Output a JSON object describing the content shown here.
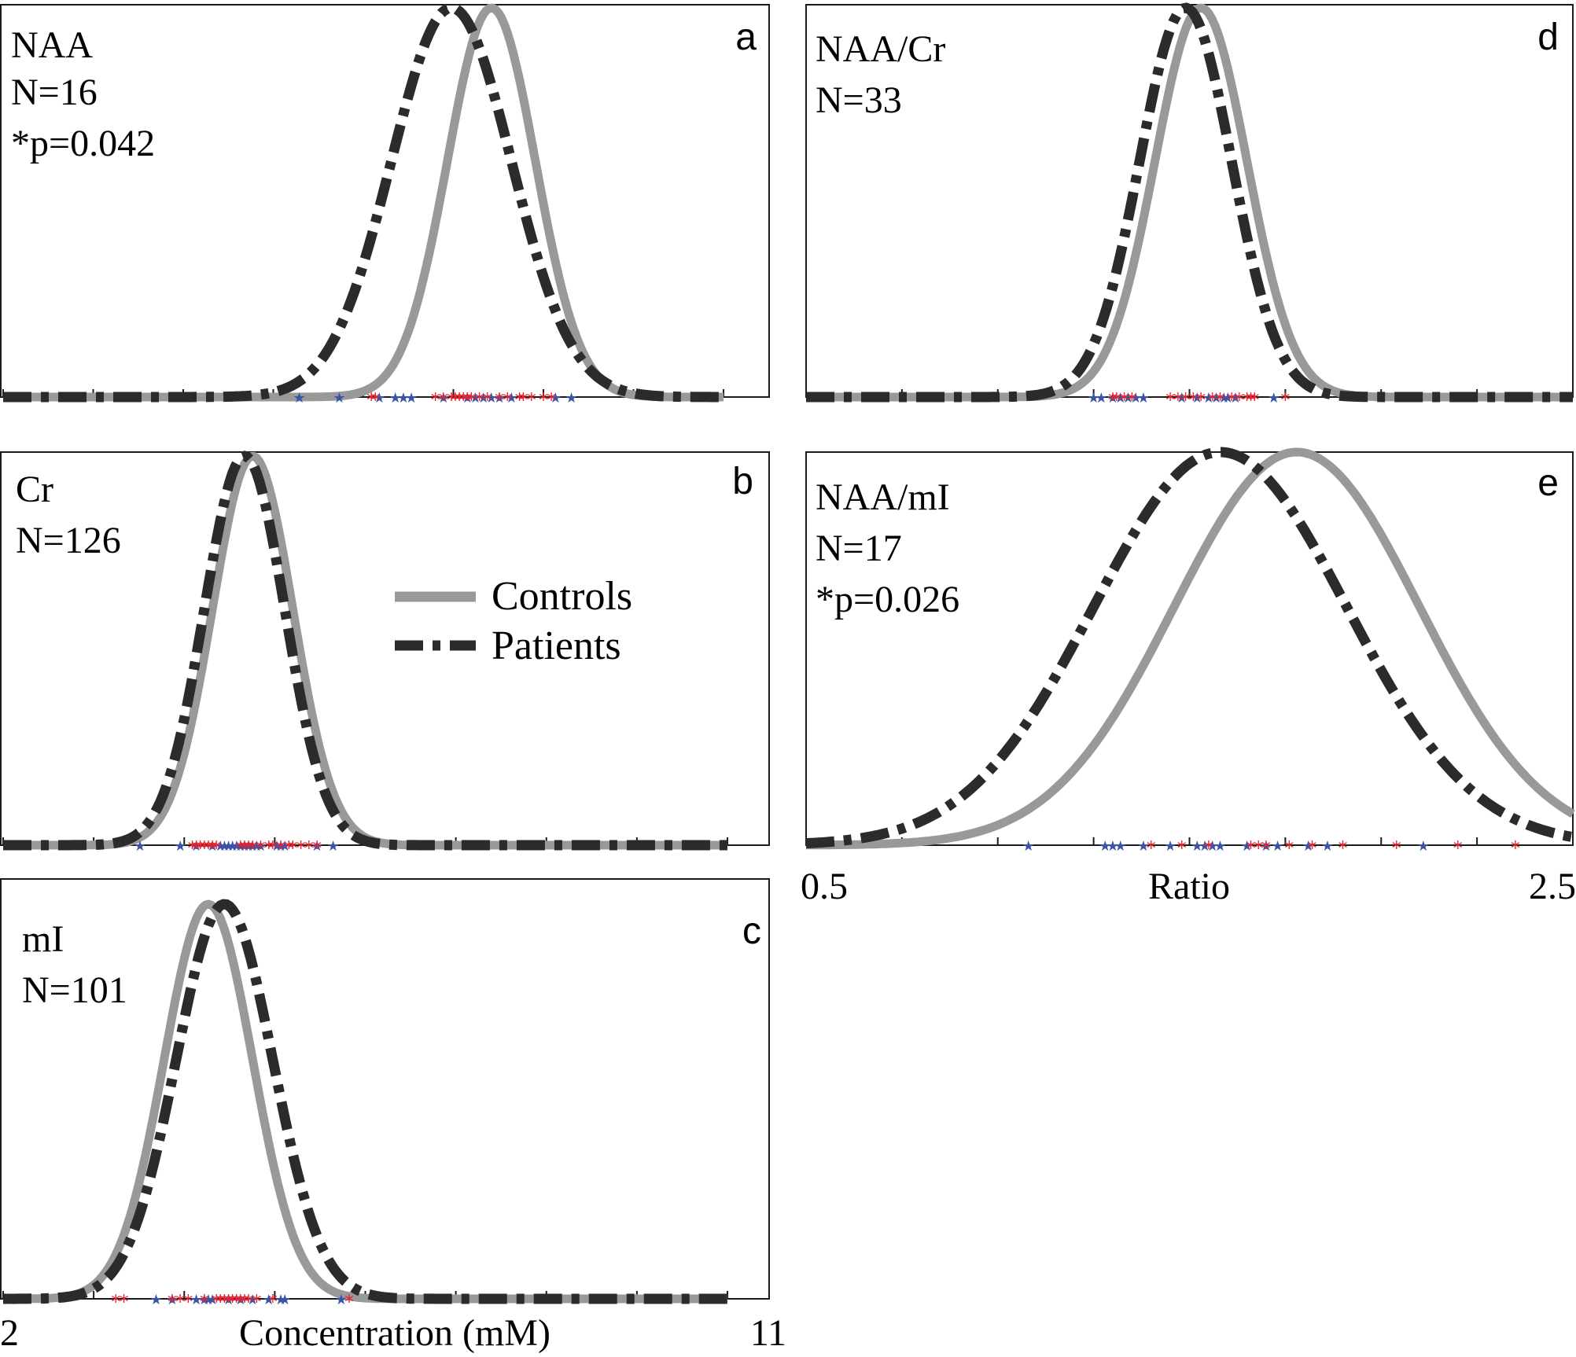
{
  "chart_data": [
    {
      "id": "a",
      "type": "line",
      "panel_letter": "a",
      "metabolite": "NAA",
      "n_label": "N=16",
      "p_label": "*p=0.042",
      "x_range": [
        2,
        11
      ],
      "y_range": [
        0,
        1.05
      ],
      "series": [
        {
          "name": "Controls",
          "mean": 8.1,
          "sd": 0.55
        },
        {
          "name": "Patients",
          "mean": 7.6,
          "sd": 0.75
        }
      ],
      "controls_points": [
        5.7,
        6.2,
        6.7,
        6.9,
        7.0,
        7.1,
        7.5,
        7.8,
        7.9,
        8.0,
        8.1,
        8.2,
        8.35,
        8.9,
        9.1
      ],
      "patients_points": [
        6.6,
        6.65,
        7.4,
        7.5,
        7.6,
        7.65,
        7.7,
        7.75,
        7.8,
        7.85,
        7.95,
        8.05,
        8.2,
        8.3,
        8.45,
        8.5,
        8.6,
        8.75,
        8.85
      ]
    },
    {
      "id": "b",
      "type": "line",
      "panel_letter": "b",
      "metabolite": "Cr",
      "n_label": "N=126",
      "p_label": "",
      "x_range": [
        2,
        11
      ],
      "y_range": [
        0,
        1.05
      ],
      "series": [
        {
          "name": "Controls",
          "mean": 5.1,
          "sd": 0.5
        },
        {
          "name": "Patients",
          "mean": 5.0,
          "sd": 0.5
        }
      ],
      "controls_points": [
        3.7,
        4.2,
        4.4,
        4.6,
        4.7,
        4.75,
        4.8,
        4.85,
        4.9,
        4.95,
        5.0,
        5.05,
        5.1,
        5.15,
        5.2,
        5.4,
        5.45,
        5.5,
        5.9,
        6.1
      ],
      "patients_points": [
        4.35,
        4.4,
        4.45,
        4.5,
        4.55,
        4.6,
        4.65,
        4.95,
        5.0,
        5.05,
        5.1,
        5.2,
        5.3,
        5.35,
        5.45,
        5.55,
        5.6,
        5.7,
        5.8,
        5.9
      ]
    },
    {
      "id": "c",
      "type": "line",
      "panel_letter": "c",
      "metabolite": "mI",
      "n_label": "N=101",
      "p_label": "",
      "x_range": [
        2,
        11
      ],
      "y_range": [
        0,
        1.05
      ],
      "series": [
        {
          "name": "Controls",
          "mean": 4.55,
          "sd": 0.55
        },
        {
          "name": "Patients",
          "mean": 4.75,
          "sd": 0.6
        }
      ],
      "controls_points": [
        3.9,
        4.1,
        4.4,
        4.5,
        4.55,
        4.6,
        4.8,
        4.95,
        5.1,
        5.3,
        5.45,
        5.5,
        6.2
      ],
      "patients_points": [
        3.4,
        3.5,
        4.1,
        4.2,
        4.3,
        4.5,
        4.65,
        4.7,
        4.75,
        4.8,
        4.85,
        4.9,
        4.95,
        5.0,
        5.05,
        5.15,
        5.35,
        6.3
      ]
    },
    {
      "id": "d",
      "type": "line",
      "panel_letter": "d",
      "metabolite": "NAA/Cr",
      "n_label": "N=33",
      "p_label": "",
      "x_range": [
        0.5,
        2.5
      ],
      "y_range": [
        0,
        1.05
      ],
      "series": [
        {
          "name": "Controls",
          "mean": 1.53,
          "sd": 0.12
        },
        {
          "name": "Patients",
          "mean": 1.49,
          "sd": 0.12
        }
      ],
      "controls_points": [
        1.25,
        1.27,
        1.3,
        1.32,
        1.34,
        1.36,
        1.38,
        1.48,
        1.52,
        1.55,
        1.57,
        1.59,
        1.6,
        1.62,
        1.72
      ],
      "patients_points": [
        1.3,
        1.31,
        1.33,
        1.35,
        1.45,
        1.47,
        1.49,
        1.51,
        1.53,
        1.56,
        1.58,
        1.61,
        1.63,
        1.65,
        1.66,
        1.67,
        1.75
      ]
    },
    {
      "id": "e",
      "type": "line",
      "panel_letter": "e",
      "metabolite": "NAA/mI",
      "n_label": "N=17",
      "p_label": "*p=0.026",
      "x_range": [
        0.5,
        2.5
      ],
      "y_range": [
        0,
        1.05
      ],
      "series": [
        {
          "name": "Controls",
          "mean": 1.78,
          "sd": 0.32
        },
        {
          "name": "Patients",
          "mean": 1.58,
          "sd": 0.33
        }
      ],
      "controls_points": [
        1.08,
        1.28,
        1.3,
        1.32,
        1.38,
        1.45,
        1.52,
        1.54,
        1.56,
        1.58,
        1.65,
        1.7,
        1.73,
        1.81,
        1.86,
        2.11
      ],
      "patients_points": [
        1.4,
        1.48,
        1.55,
        1.66,
        1.68,
        1.7,
        1.76,
        1.82,
        1.9,
        2.04,
        2.2,
        2.35
      ]
    }
  ],
  "legend": {
    "controls_label": "Controls",
    "patients_label": "Patients"
  },
  "axes": {
    "left_x_min": "2",
    "left_x_max": "11",
    "left_x_label": "Concentration (mM)",
    "right_x_min": "0.5",
    "right_x_max": "2.5",
    "right_x_label": "Ratio"
  },
  "colors": {
    "controls": "#999999",
    "patients": "#2b2b2b",
    "control_points": "#3a55a8",
    "patient_points": "#e8202a"
  }
}
